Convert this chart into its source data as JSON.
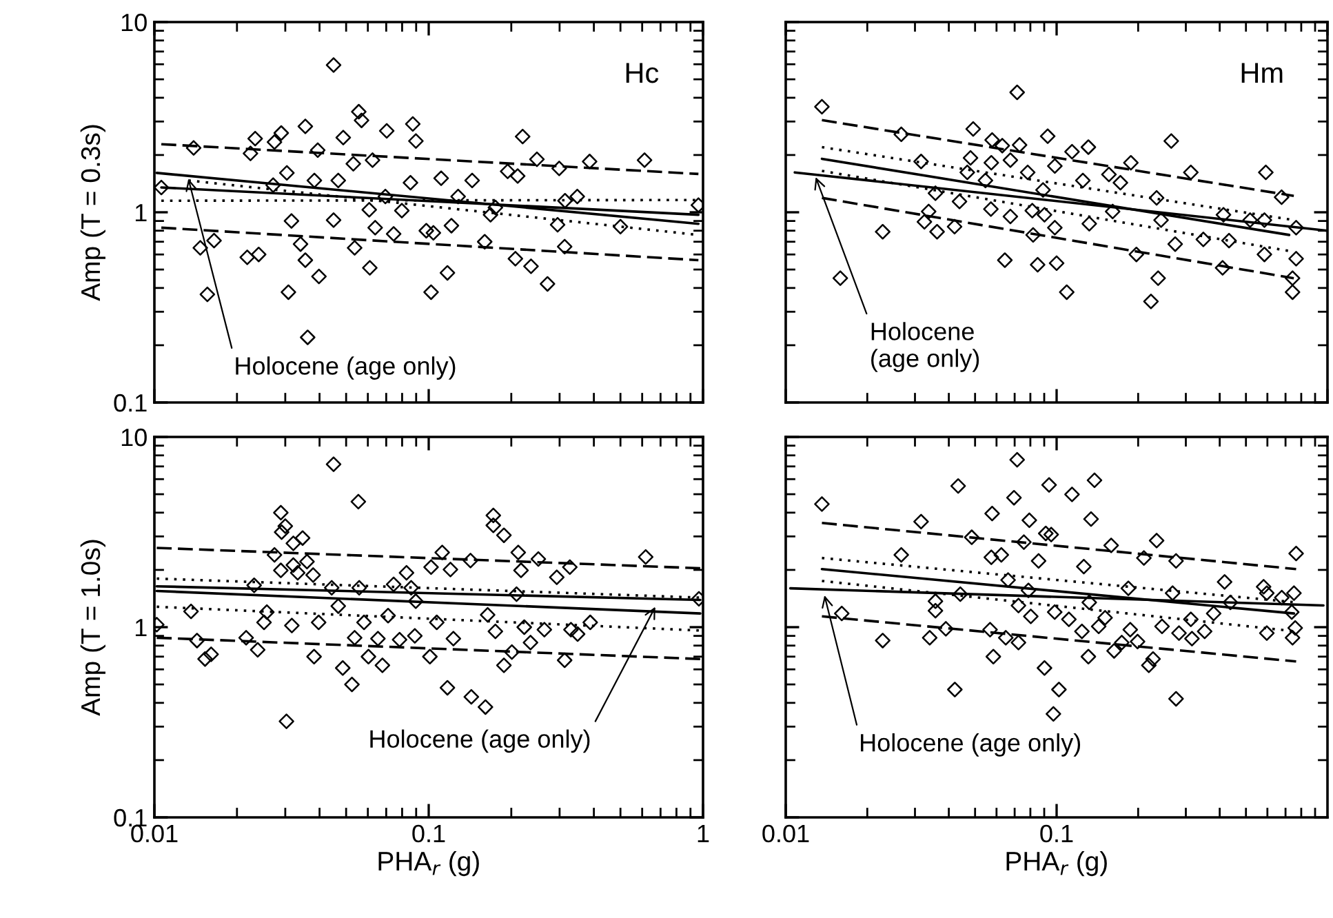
{
  "chart_data": [
    {
      "type": "scatter",
      "ylabel": "Amp (T = 0.3s)",
      "log": "xy",
      "xlim": [
        0.01,
        1
      ],
      "ylim": [
        0.1,
        10
      ],
      "xticks": [
        0.01,
        0.1,
        1
      ],
      "yticks": [
        0.1,
        1,
        10
      ],
      "tick_labels": "y",
      "annotations": [
        "Hc",
        {
          "text": "Holocene (age only)",
          "x": 0.0133,
          "y": 1.5
        }
      ],
      "series": [
        {
          "type": "scatter",
          "color": "#000000",
          "marker": "diamond",
          "x": [
            0.0106,
            0.0139,
            0.0147,
            0.0165,
            0.0156,
            0.0218,
            0.024,
            0.0224,
            0.0233,
            0.0274,
            0.029,
            0.0271,
            0.0304,
            0.0308,
            0.0316,
            0.0341,
            0.0355,
            0.0355,
            0.0383,
            0.0394,
            0.0398,
            0.0362,
            0.045,
            0.0468,
            0.045,
            0.0488,
            0.0531,
            0.0556,
            0.0569,
            0.061,
            0.0537,
            0.0624,
            0.0638,
            0.0703,
            0.0745,
            0.0798,
            0.0875,
            0.0898,
            0.0858,
            0.098,
            0.102,
            0.104,
            0.117,
            0.111,
            0.121,
            0.144,
            0.16,
            0.175,
            0.194,
            0.207,
            0.22,
            0.236,
            0.248,
            0.271,
            0.295,
            0.299,
            0.314,
            0.313,
            0.348,
            0.386,
            0.5,
            0.612,
            0.962,
            0.211,
            0.0607,
            0.0695,
            0.128,
            0.168
          ],
          "values": [
            1.35,
            2.18,
            0.65,
            0.71,
            0.37,
            0.58,
            0.6,
            2.04,
            2.44,
            2.34,
            2.61,
            1.39,
            1.61,
            0.38,
            0.9,
            0.68,
            2.83,
            0.56,
            1.47,
            2.12,
            0.46,
            0.22,
            5.94,
            1.47,
            0.91,
            2.47,
            1.8,
            3.38,
            3.04,
            0.51,
            0.65,
            1.88,
            0.83,
            2.68,
            0.77,
            1.02,
            2.91,
            2.37,
            1.43,
            0.8,
            0.38,
            0.78,
            0.48,
            1.51,
            0.85,
            1.47,
            0.7,
            1.06,
            1.64,
            0.57,
            2.5,
            0.52,
            1.9,
            0.42,
            0.86,
            1.7,
            1.15,
            0.66,
            1.21,
            1.85,
            0.84,
            1.88,
            1.09,
            1.55,
            1.03,
            1.21,
            1.21,
            0.97
          ]
        },
        {
          "type": "line",
          "color": "#000000",
          "line_style": "solid",
          "x": [
            0.0106,
            0.962
          ],
          "values": [
            1.35,
            0.97
          ]
        },
        {
          "type": "line",
          "color": "#000000",
          "line_style": "solid",
          "x": [
            0.0102,
            0.962
          ],
          "values": [
            1.61,
            0.87
          ]
        },
        {
          "type": "line",
          "color": "#000000",
          "line_style": "dotted",
          "x": [
            0.0106,
            0.962
          ],
          "values": [
            1.15,
            1.16
          ]
        },
        {
          "type": "line",
          "color": "#000000",
          "line_style": "dotted",
          "x": [
            0.0133,
            0.962
          ],
          "values": [
            1.47,
            0.76
          ]
        },
        {
          "type": "line",
          "color": "#000000",
          "line_style": "dashed",
          "x": [
            0.0106,
            0.962
          ],
          "values": [
            2.28,
            1.59
          ]
        },
        {
          "type": "line",
          "color": "#000000",
          "line_style": "dashed",
          "x": [
            0.0106,
            0.962
          ],
          "values": [
            0.83,
            0.56
          ]
        }
      ]
    },
    {
      "type": "scatter",
      "log": "xy",
      "xlim": [
        0.01,
        1
      ],
      "ylim": [
        0.1,
        10
      ],
      "xticks": [
        0.01,
        0.1,
        1
      ],
      "yticks": [
        0.1,
        1,
        10
      ],
      "tick_labels": false,
      "annotations": [
        "Hm",
        {
          "text": "Holocene\n(age only)",
          "x": 0.0129,
          "y": 1.53
        }
      ],
      "series": [
        {
          "type": "scatter",
          "color": "#000000",
          "marker": "diamond",
          "x": [
            0.0136,
            0.0159,
            0.0228,
            0.0267,
            0.0316,
            0.0337,
            0.0325,
            0.0357,
            0.0362,
            0.042,
            0.0438,
            0.0468,
            0.0481,
            0.0492,
            0.0546,
            0.0572,
            0.0578,
            0.0574,
            0.063,
            0.0644,
            0.0675,
            0.0675,
            0.0715,
            0.073,
            0.0782,
            0.0813,
            0.0819,
            0.0851,
            0.0902,
            0.0891,
            0.0927,
            0.0985,
            0.0985,
            0.1,
            0.109,
            0.114,
            0.125,
            0.131,
            0.132,
            0.156,
            0.161,
            0.172,
            0.188,
            0.197,
            0.234,
            0.237,
            0.223,
            0.243,
            0.265,
            0.274,
            0.313,
            0.348,
            0.41,
            0.433,
            0.518,
            0.585,
            0.592,
            0.677,
            0.743,
            0.743,
            0.766,
            0.766,
            0.413,
            0.585
          ],
          "values": [
            3.59,
            0.45,
            0.79,
            2.57,
            1.85,
            1.01,
            0.89,
            1.26,
            0.79,
            0.84,
            1.14,
            1.62,
            1.93,
            2.74,
            1.47,
            1.04,
            2.4,
            1.82,
            2.24,
            0.56,
            0.95,
            1.88,
            4.27,
            2.26,
            1.62,
            1.02,
            0.76,
            0.53,
            0.97,
            1.31,
            2.51,
            1.75,
            0.83,
            0.54,
            0.38,
            2.08,
            1.47,
            2.2,
            0.87,
            1.58,
            1.01,
            1.43,
            1.82,
            0.6,
            1.19,
            0.45,
            0.34,
            0.91,
            2.37,
            0.68,
            1.62,
            0.72,
            0.51,
            0.71,
            0.91,
            0.6,
            1.62,
            1.2,
            0.45,
            0.38,
            0.57,
            0.83,
            0.97,
            0.91
          ]
        },
        {
          "type": "line",
          "color": "#000000",
          "line_style": "solid",
          "x": [
            0.0136,
            0.722
          ],
          "values": [
            1.91,
            0.76
          ]
        },
        {
          "type": "line",
          "color": "#000000",
          "line_style": "solid",
          "x": [
            0.0108,
            1.0
          ],
          "values": [
            1.62,
            0.8
          ]
        },
        {
          "type": "line",
          "color": "#000000",
          "line_style": "dotted",
          "x": [
            0.0136,
            0.751
          ],
          "values": [
            2.2,
            0.91
          ]
        },
        {
          "type": "line",
          "color": "#000000",
          "line_style": "dotted",
          "x": [
            0.0136,
            0.751
          ],
          "values": [
            1.65,
            0.62
          ]
        },
        {
          "type": "line",
          "color": "#000000",
          "line_style": "dashed",
          "x": [
            0.0136,
            0.751
          ],
          "values": [
            3.05,
            1.22
          ]
        },
        {
          "type": "line",
          "color": "#000000",
          "line_style": "dashed",
          "x": [
            0.0136,
            0.751
          ],
          "values": [
            1.19,
            0.45
          ]
        }
      ]
    },
    {
      "type": "scatter",
      "xlabel": "PHA$_{r}$ (g)",
      "ylabel": "Amp (T = 1.0s)",
      "log": "xy",
      "xlim": [
        0.01,
        1
      ],
      "ylim": [
        0.1,
        10
      ],
      "xticks": [
        0.01,
        0.1,
        1
      ],
      "yticks": [
        0.1,
        1,
        10
      ],
      "annotations": [
        {
          "text": "Holocene (age only)",
          "x": 0.67,
          "y": 1.28
        }
      ],
      "series": [
        {
          "type": "scatter",
          "color": "#000000",
          "marker": "diamond",
          "x": [
            0.0102,
            0.0136,
            0.0143,
            0.0153,
            0.0161,
            0.0216,
            0.0238,
            0.0231,
            0.0251,
            0.0257,
            0.0274,
            0.0289,
            0.0291,
            0.03,
            0.0289,
            0.0303,
            0.0317,
            0.0321,
            0.0321,
            0.0333,
            0.0347,
            0.036,
            0.0379,
            0.0382,
            0.0397,
            0.0443,
            0.0468,
            0.0486,
            0.045,
            0.0525,
            0.0537,
            0.0554,
            0.0558,
            0.0581,
            0.0603,
            0.0653,
            0.0678,
            0.0711,
            0.0745,
            0.0783,
            0.083,
            0.0863,
            0.0897,
            0.089,
            0.102,
            0.101,
            0.107,
            0.112,
            0.12,
            0.123,
            0.117,
            0.143,
            0.161,
            0.142,
            0.164,
            0.172,
            0.172,
            0.175,
            0.188,
            0.188,
            0.201,
            0.209,
            0.212,
            0.217,
            0.223,
            0.235,
            0.251,
            0.264,
            0.293,
            0.313,
            0.327,
            0.33,
            0.349,
            0.388,
            0.618,
            0.966
          ],
          "values": [
            1.03,
            1.21,
            0.85,
            0.68,
            0.72,
            0.88,
            0.76,
            1.66,
            1.06,
            1.2,
            2.4,
            4.0,
            3.16,
            3.4,
            1.99,
            0.32,
            1.02,
            2.76,
            2.12,
            1.93,
            2.94,
            2.21,
            1.88,
            0.7,
            1.06,
            1.61,
            1.29,
            0.61,
            7.19,
            0.5,
            0.88,
            4.57,
            1.61,
            1.06,
            0.7,
            0.87,
            0.63,
            1.15,
            1.68,
            0.86,
            1.93,
            1.61,
            1.37,
            0.9,
            2.07,
            0.7,
            1.06,
            2.47,
            2.01,
            0.87,
            0.48,
            0.43,
            0.38,
            2.24,
            1.16,
            3.87,
            3.43,
            0.95,
            3.04,
            0.63,
            0.74,
            1.49,
            2.47,
            1.99,
            1.0,
            0.83,
            2.28,
            0.97,
            1.83,
            0.67,
            2.07,
            0.97,
            0.92,
            1.06,
            2.34,
            1.41
          ]
        },
        {
          "type": "line",
          "color": "#000000",
          "line_style": "solid",
          "x": [
            0.0102,
            0.977
          ],
          "values": [
            1.55,
            1.18
          ]
        },
        {
          "type": "line",
          "color": "#000000",
          "line_style": "solid",
          "x": [
            0.0102,
            0.977
          ],
          "values": [
            1.64,
            1.39
          ]
        },
        {
          "type": "line",
          "color": "#000000",
          "line_style": "dotted",
          "x": [
            0.0102,
            0.977
          ],
          "values": [
            1.8,
            1.43
          ]
        },
        {
          "type": "line",
          "color": "#000000",
          "line_style": "dotted",
          "x": [
            0.0102,
            0.977
          ],
          "values": [
            1.28,
            0.96
          ]
        },
        {
          "type": "line",
          "color": "#000000",
          "line_style": "dashed",
          "x": [
            0.0102,
            0.977
          ],
          "values": [
            2.61,
            2.04
          ]
        },
        {
          "type": "line",
          "color": "#000000",
          "line_style": "dashed",
          "x": [
            0.0102,
            0.977
          ],
          "values": [
            0.88,
            0.68
          ]
        }
      ]
    },
    {
      "type": "scatter",
      "xlabel": "PHA$_{r}$ (g)",
      "log": "xy",
      "xlim": [
        0.01,
        1
      ],
      "ylim": [
        0.1,
        10
      ],
      "xticks": [
        0.01,
        0.1
      ],
      "yticks": [
        0.1,
        1,
        10
      ],
      "tick_labels": "x",
      "annotations": [
        {
          "text": "Holocene (age only)",
          "x": 0.0139,
          "y": 1.47
        }
      ],
      "series": [
        {
          "type": "scatter",
          "color": "#000000",
          "marker": "diamond",
          "x": [
            0.0136,
            0.0161,
            0.0228,
            0.0267,
            0.0316,
            0.0357,
            0.0357,
            0.034,
            0.039,
            0.0421,
            0.0433,
            0.0441,
            0.0486,
            0.0568,
            0.0578,
            0.0574,
            0.0584,
            0.0625,
            0.0649,
            0.0662,
            0.0696,
            0.0715,
            0.0723,
            0.0723,
            0.0757,
            0.0793,
            0.0787,
            0.0803,
            0.0858,
            0.0902,
            0.0912,
            0.0938,
            0.0955,
            0.0973,
            0.0984,
            0.102,
            0.111,
            0.114,
            0.124,
            0.126,
            0.131,
            0.132,
            0.134,
            0.138,
            0.143,
            0.151,
            0.159,
            0.163,
            0.174,
            0.184,
            0.187,
            0.199,
            0.21,
            0.219,
            0.227,
            0.234,
            0.245,
            0.268,
            0.276,
            0.276,
            0.283,
            0.313,
            0.316,
            0.352,
            0.38,
            0.417,
            0.438,
            0.581,
            0.597,
            0.597,
            0.678,
            0.738,
            0.752,
            0.76,
            0.766,
            0.743
          ],
          "values": [
            4.44,
            1.18,
            0.85,
            2.4,
            3.59,
            1.37,
            1.22,
            0.88,
            0.98,
            0.47,
            5.52,
            1.49,
            2.97,
            0.97,
            3.96,
            2.33,
            0.7,
            2.4,
            0.88,
            1.77,
            4.79,
            7.59,
            0.83,
            1.3,
            2.8,
            3.65,
            1.56,
            1.14,
            2.23,
            0.61,
            3.11,
            5.59,
            3.07,
            0.35,
            1.2,
            0.47,
            1.1,
            4.99,
            0.95,
            2.08,
            0.7,
            1.35,
            3.7,
            5.92,
            1.01,
            1.12,
            2.69,
            0.75,
            0.83,
            1.6,
            0.97,
            0.84,
            2.31,
            0.63,
            0.68,
            2.85,
            1.01,
            1.51,
            2.23,
            0.42,
            0.93,
            1.1,
            0.87,
            0.95,
            1.18,
            1.73,
            1.35,
            1.63,
            1.51,
            0.93,
            1.43,
            1.2,
            1.51,
            0.99,
            2.44,
            0.88
          ]
        },
        {
          "type": "line",
          "color": "#000000",
          "line_style": "solid",
          "x": [
            0.0136,
            0.752
          ],
          "values": [
            2.02,
            1.18
          ]
        },
        {
          "type": "line",
          "color": "#000000",
          "line_style": "solid",
          "x": [
            0.0104,
            0.966
          ],
          "values": [
            1.6,
            1.3
          ]
        },
        {
          "type": "line",
          "color": "#000000",
          "line_style": "dotted",
          "x": [
            0.0136,
            0.766
          ],
          "values": [
            2.31,
            1.35
          ]
        },
        {
          "type": "line",
          "color": "#000000",
          "line_style": "dotted",
          "x": [
            0.0136,
            0.766
          ],
          "values": [
            1.75,
            0.95
          ]
        },
        {
          "type": "line",
          "color": "#000000",
          "line_style": "dashed",
          "x": [
            0.0136,
            0.766
          ],
          "values": [
            3.53,
            2.02
          ]
        },
        {
          "type": "line",
          "color": "#000000",
          "line_style": "dashed",
          "x": [
            0.0136,
            0.766
          ],
          "values": [
            1.14,
            0.66
          ]
        }
      ]
    }
  ]
}
